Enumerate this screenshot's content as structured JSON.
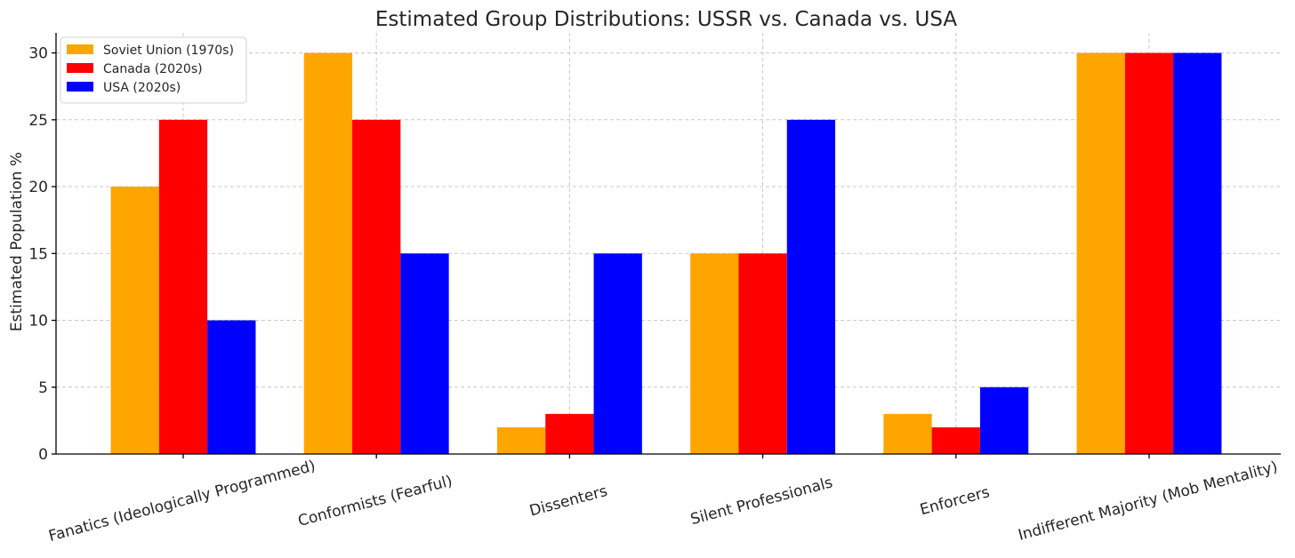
{
  "chart_data": {
    "type": "bar",
    "title": "Estimated Group Distributions: USSR vs. Canada vs. USA",
    "xlabel": "",
    "ylabel": "Estimated Population %",
    "ylim": [
      0,
      31.5
    ],
    "yticks": [
      0,
      5,
      10,
      15,
      20,
      25,
      30
    ],
    "grid": true,
    "legend_position": "top-left",
    "categories": [
      "Fanatics (Ideologically Programmed)",
      "Conformists (Fearful)",
      "Dissenters",
      "Silent Professionals",
      "Enforcers",
      "Indifferent Majority (Mob Mentality)"
    ],
    "series": [
      {
        "name": "Soviet Union (1970s)",
        "color": "#FFA500",
        "values": [
          20,
          30,
          2,
          15,
          3,
          30
        ]
      },
      {
        "name": "Canada (2020s)",
        "color": "#FF0000",
        "values": [
          25,
          25,
          3,
          15,
          2,
          30
        ]
      },
      {
        "name": "USA (2020s)",
        "color": "#0000FF",
        "values": [
          10,
          15,
          15,
          25,
          5,
          30
        ]
      }
    ]
  }
}
